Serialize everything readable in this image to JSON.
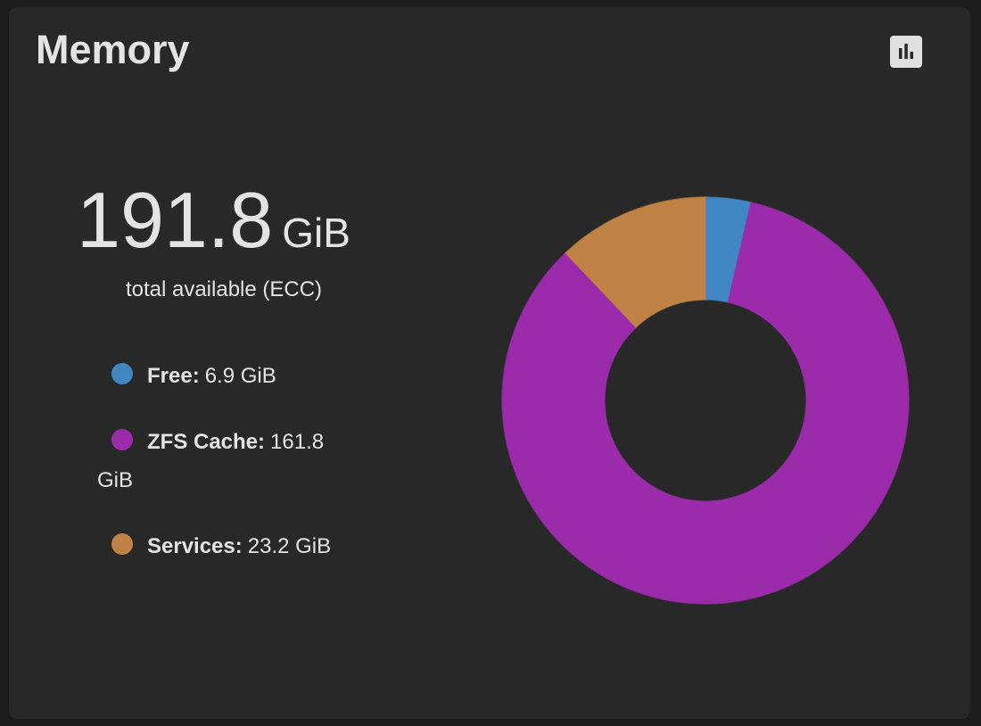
{
  "header": {
    "title": "Memory"
  },
  "summary": {
    "total": "191.8",
    "unit": "GiB",
    "caption": "total available (ECC)"
  },
  "chart_data": {
    "type": "donut",
    "categories": [
      "Free:",
      "ZFS Cache:",
      "Services:"
    ],
    "values": [
      6.9,
      161.8,
      23.2
    ],
    "value_labels": [
      "6.9 GiB",
      "161.8 GiB",
      "23.2 GiB"
    ],
    "colors": [
      "#3f86c2",
      "#9b2bab",
      "#c08245"
    ]
  }
}
